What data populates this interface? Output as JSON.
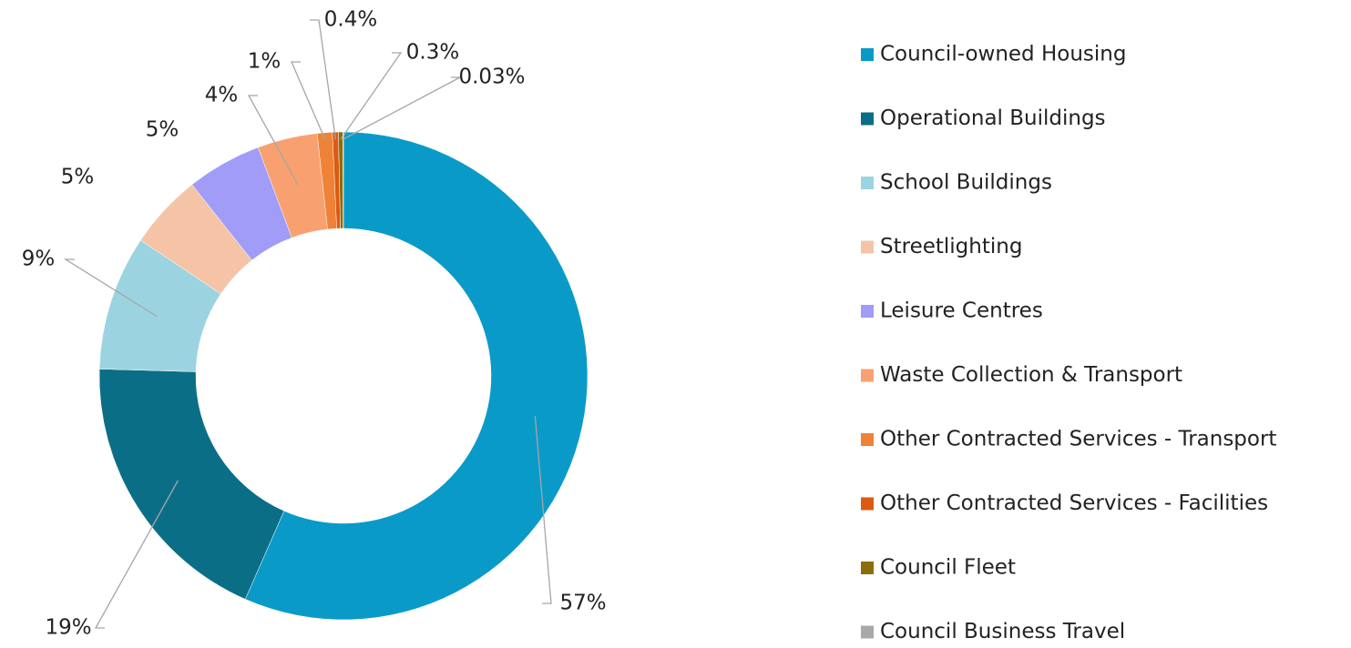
{
  "chart_data": {
    "type": "donut",
    "categories": [
      "Council-owned Housing",
      "Operational Buildings",
      "School Buildings",
      "Streetlighting",
      "Leisure Centres",
      "Waste Collection & Transport",
      "Other Contracted Services - Transport",
      "Other Contracted Services - Facilities",
      "Council Fleet",
      "Council Business Travel"
    ],
    "values": [
      57,
      19,
      9,
      5,
      5,
      4,
      1,
      0.4,
      0.3,
      0.03
    ],
    "value_labels": [
      "57%",
      "19%",
      "9%",
      "5%",
      "5%",
      "4%",
      "1%",
      "0.4%",
      "0.3%",
      "0.03%"
    ],
    "colors": [
      "#0a9ac8",
      "#0b6e87",
      "#9bd4e0",
      "#f5c4a6",
      "#a09cf7",
      "#f9a070",
      "#ee8236",
      "#dd5a12",
      "#8b6d0c",
      "#a8a8a8"
    ],
    "legend": "right"
  }
}
